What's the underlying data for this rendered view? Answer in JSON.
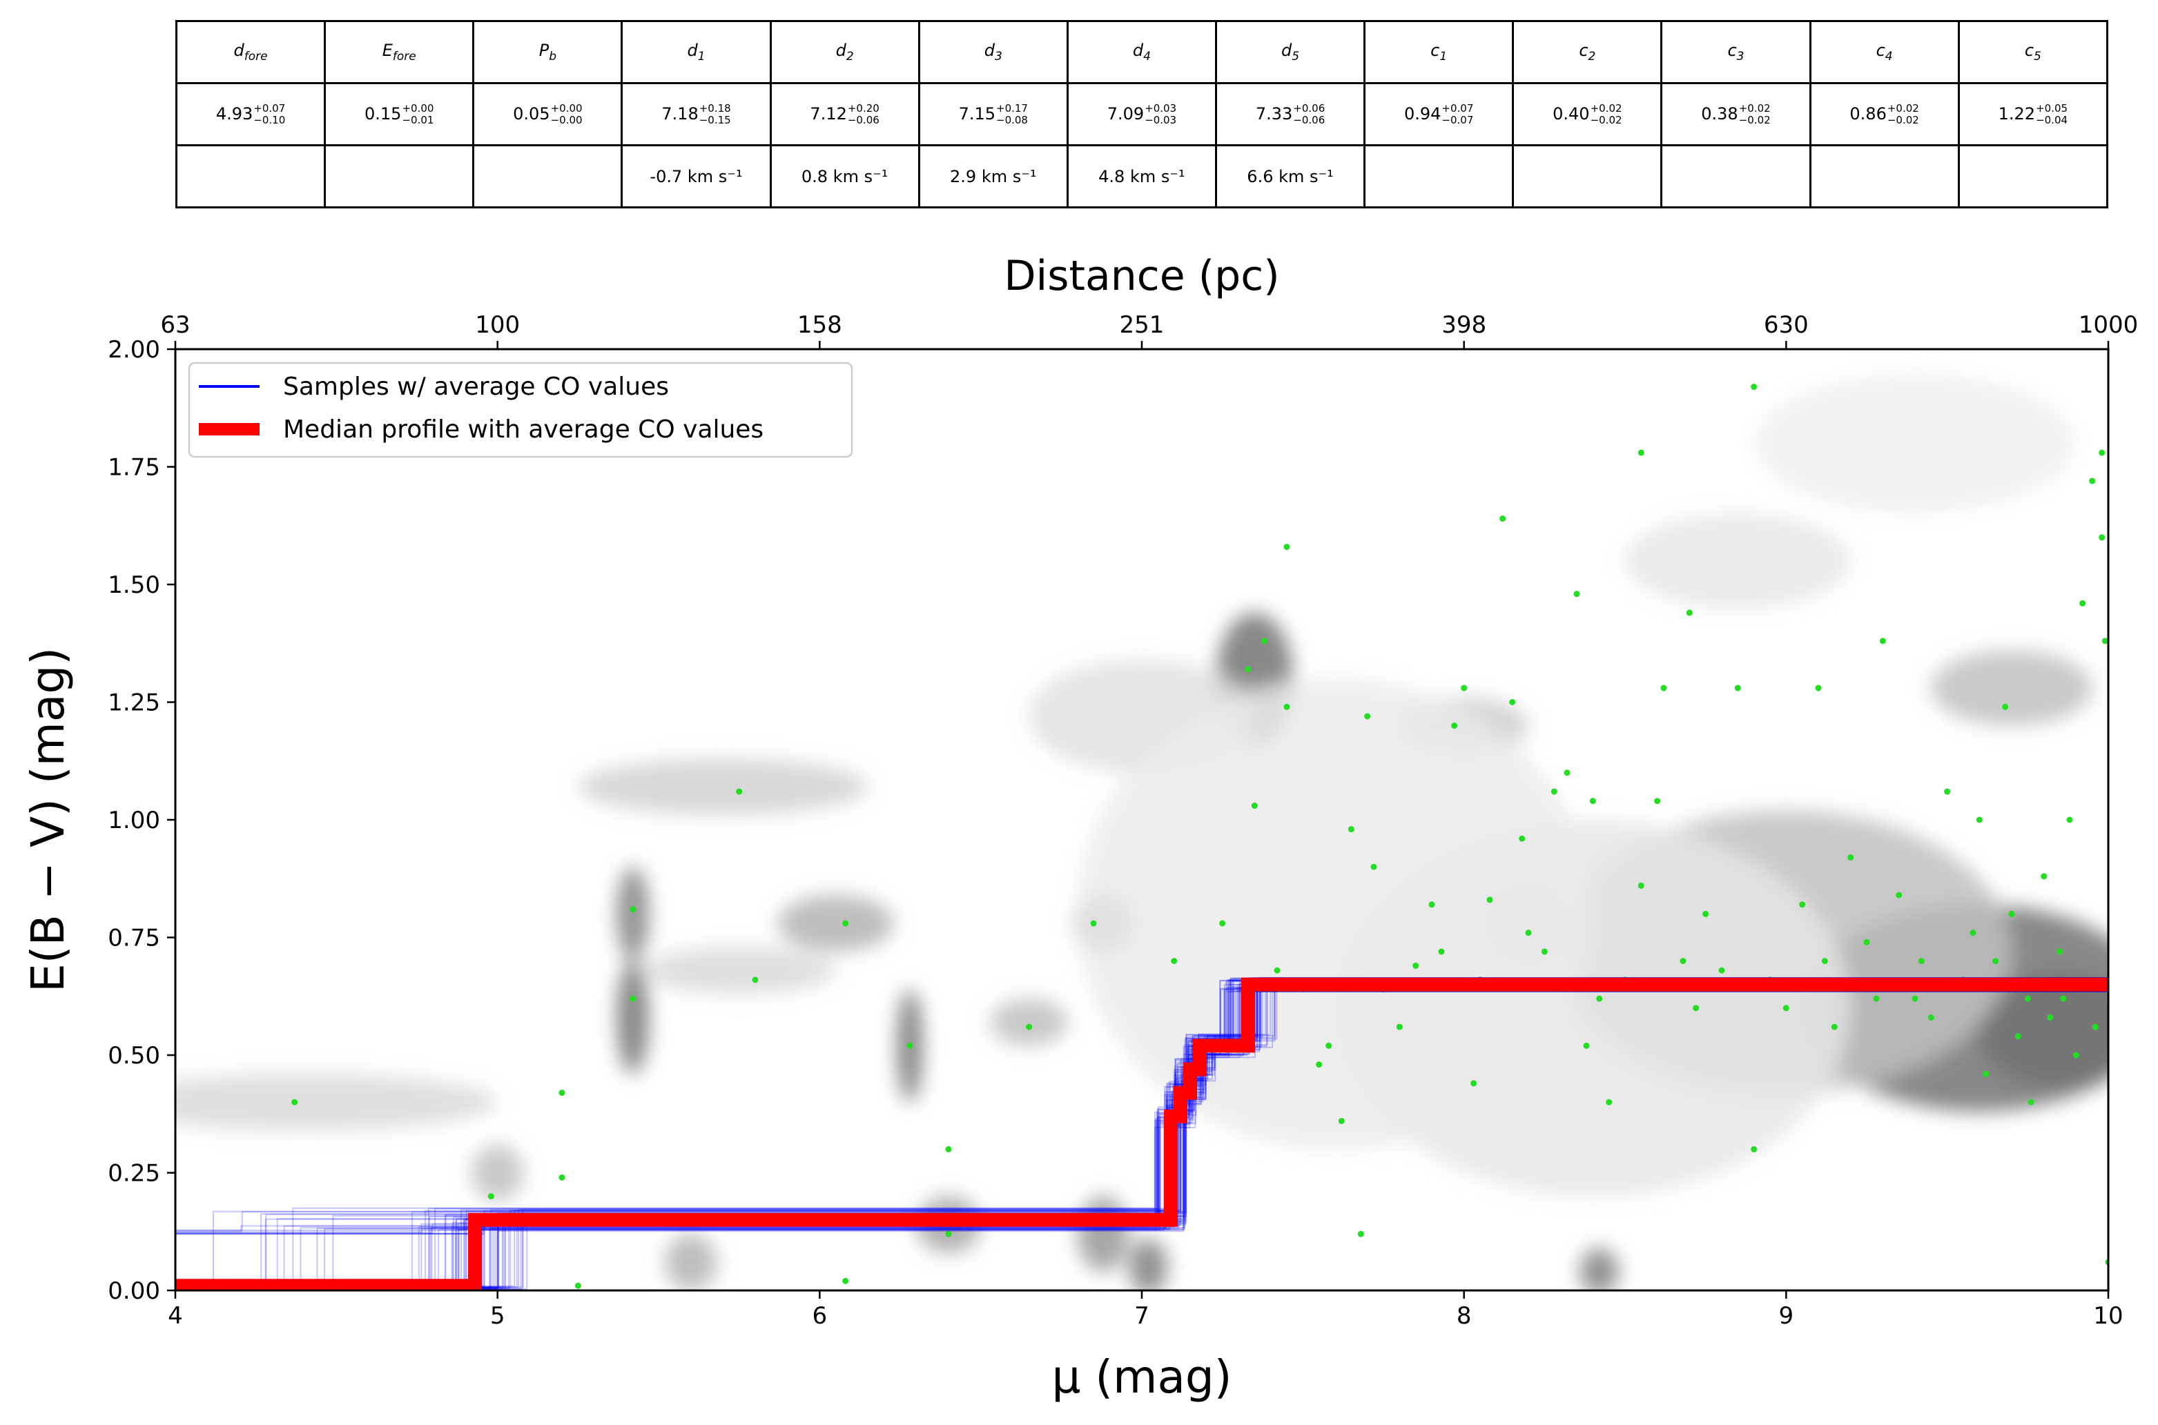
{
  "table": {
    "headers": [
      "dfore",
      "Efore",
      "Pb",
      "d1",
      "d2",
      "d3",
      "d4",
      "d5",
      "c1",
      "c2",
      "c3",
      "c4",
      "c5"
    ],
    "header_subscripts": [
      {
        "base": "d",
        "sub": "fore"
      },
      {
        "base": "E",
        "sub": "fore"
      },
      {
        "base": "P",
        "sub": "b"
      },
      {
        "base": "d",
        "sub": "1"
      },
      {
        "base": "d",
        "sub": "2"
      },
      {
        "base": "d",
        "sub": "3"
      },
      {
        "base": "d",
        "sub": "4"
      },
      {
        "base": "d",
        "sub": "5"
      },
      {
        "base": "c",
        "sub": "1"
      },
      {
        "base": "c",
        "sub": "2"
      },
      {
        "base": "c",
        "sub": "3"
      },
      {
        "base": "c",
        "sub": "4"
      },
      {
        "base": "c",
        "sub": "5"
      }
    ],
    "values": [
      {
        "v": "4.93",
        "plus": "+0.07",
        "minus": "−0.10"
      },
      {
        "v": "0.15",
        "plus": "+0.00",
        "minus": "−0.01"
      },
      {
        "v": "0.05",
        "plus": "+0.00",
        "minus": "−0.00"
      },
      {
        "v": "7.18",
        "plus": "+0.18",
        "minus": "−0.15"
      },
      {
        "v": "7.12",
        "plus": "+0.20",
        "minus": "−0.06"
      },
      {
        "v": "7.15",
        "plus": "+0.17",
        "minus": "−0.08"
      },
      {
        "v": "7.09",
        "plus": "+0.03",
        "minus": "−0.03"
      },
      {
        "v": "7.33",
        "plus": "+0.06",
        "minus": "−0.06"
      },
      {
        "v": "0.94",
        "plus": "+0.07",
        "minus": "−0.07"
      },
      {
        "v": "0.40",
        "plus": "+0.02",
        "minus": "−0.02"
      },
      {
        "v": "0.38",
        "plus": "+0.02",
        "minus": "−0.02"
      },
      {
        "v": "0.86",
        "plus": "+0.02",
        "minus": "−0.02"
      },
      {
        "v": "1.22",
        "plus": "+0.05",
        "minus": "−0.04"
      }
    ],
    "velocities": [
      "",
      "",
      "",
      "-0.7 km s⁻¹",
      "0.8 km s⁻¹",
      "2.9 km s⁻¹",
      "4.8 km s⁻¹",
      "6.6 km s⁻¹",
      "",
      "",
      "",
      "",
      ""
    ]
  },
  "chart_data": {
    "type": "line",
    "xlabel": "μ (mag)",
    "ylabel": "E(B − V) (mag)",
    "top_xlabel": "Distance (pc)",
    "xlim": [
      4,
      10
    ],
    "ylim": [
      0,
      2
    ],
    "xticks": [
      "4",
      "5",
      "6",
      "7",
      "8",
      "9",
      "10"
    ],
    "yticks": [
      "0.00",
      "0.25",
      "0.50",
      "0.75",
      "1.00",
      "1.25",
      "1.50",
      "1.75",
      "2.00"
    ],
    "top_ticks": [
      {
        "mu": 4,
        "label": "63"
      },
      {
        "mu": 5,
        "label": "100"
      },
      {
        "mu": 6,
        "label": "158"
      },
      {
        "mu": 7,
        "label": "251"
      },
      {
        "mu": 8,
        "label": "398"
      },
      {
        "mu": 9,
        "label": "630"
      },
      {
        "mu": 10,
        "label": "1000"
      }
    ],
    "legend_position": "top-left",
    "grid": false,
    "series": [
      {
        "name": "Samples  w/ average CO values",
        "color": "#0000ff",
        "kind": "many thin translucent step profiles",
        "sample_steps": [
          {
            "mu": 4.93,
            "ebv": 0.15
          },
          {
            "mu": 7.09,
            "ebv": 0.37
          },
          {
            "mu": 7.12,
            "ebv": 0.42
          },
          {
            "mu": 7.15,
            "ebv": 0.47
          },
          {
            "mu": 7.18,
            "ebv": 0.52
          },
          {
            "mu": 7.33,
            "ebv": 0.65
          }
        ]
      },
      {
        "name": "Median profile with average CO values",
        "color": "#ff0000",
        "points": [
          {
            "x": 4.0,
            "y": 0.01
          },
          {
            "x": 4.93,
            "y": 0.01
          },
          {
            "x": 4.93,
            "y": 0.15
          },
          {
            "x": 7.09,
            "y": 0.15
          },
          {
            "x": 7.09,
            "y": 0.37
          },
          {
            "x": 7.12,
            "y": 0.37
          },
          {
            "x": 7.12,
            "y": 0.42
          },
          {
            "x": 7.15,
            "y": 0.42
          },
          {
            "x": 7.15,
            "y": 0.47
          },
          {
            "x": 7.18,
            "y": 0.47
          },
          {
            "x": 7.18,
            "y": 0.52
          },
          {
            "x": 7.33,
            "y": 0.52
          },
          {
            "x": 7.33,
            "y": 0.65
          },
          {
            "x": 10.0,
            "y": 0.65
          }
        ]
      }
    ],
    "stars": {
      "color": "#22dd22",
      "points": [
        [
          4.37,
          0.4
        ],
        [
          4.92,
          0.08
        ],
        [
          4.98,
          0.2
        ],
        [
          5.2,
          0.42
        ],
        [
          5.2,
          0.24
        ],
        [
          5.25,
          0.01
        ],
        [
          5.42,
          0.62
        ],
        [
          5.42,
          0.81
        ],
        [
          5.75,
          1.06
        ],
        [
          5.8,
          0.66
        ],
        [
          6.08,
          0.78
        ],
        [
          6.08,
          0.02
        ],
        [
          6.28,
          0.52
        ],
        [
          6.4,
          0.3
        ],
        [
          6.4,
          0.12
        ],
        [
          6.65,
          0.56
        ],
        [
          6.85,
          0.78
        ],
        [
          6.88,
          0.15
        ],
        [
          7.1,
          0.7
        ],
        [
          7.25,
          0.78
        ],
        [
          7.33,
          1.32
        ],
        [
          7.35,
          1.03
        ],
        [
          7.38,
          1.38
        ],
        [
          7.42,
          0.68
        ],
        [
          7.45,
          1.58
        ],
        [
          7.45,
          1.24
        ],
        [
          7.5,
          0.64
        ],
        [
          7.55,
          0.48
        ],
        [
          7.58,
          0.52
        ],
        [
          7.62,
          0.36
        ],
        [
          7.65,
          0.98
        ],
        [
          7.68,
          0.12
        ],
        [
          7.7,
          1.22
        ],
        [
          7.72,
          0.9
        ],
        [
          7.75,
          0.64
        ],
        [
          7.8,
          0.56
        ],
        [
          7.85,
          0.69
        ],
        [
          7.9,
          0.82
        ],
        [
          7.93,
          0.72
        ],
        [
          7.97,
          1.2
        ],
        [
          8.0,
          1.28
        ],
        [
          8.03,
          0.44
        ],
        [
          8.05,
          0.66
        ],
        [
          8.08,
          0.83
        ],
        [
          8.12,
          1.64
        ],
        [
          8.15,
          1.25
        ],
        [
          8.18,
          0.96
        ],
        [
          8.2,
          0.76
        ],
        [
          8.25,
          0.72
        ],
        [
          8.28,
          1.06
        ],
        [
          8.32,
          1.1
        ],
        [
          8.35,
          1.48
        ],
        [
          8.38,
          0.52
        ],
        [
          8.4,
          1.04
        ],
        [
          8.42,
          0.62
        ],
        [
          8.45,
          0.4
        ],
        [
          8.5,
          0.66
        ],
        [
          8.55,
          1.78
        ],
        [
          8.55,
          0.86
        ],
        [
          8.6,
          1.04
        ],
        [
          8.62,
          1.28
        ],
        [
          8.68,
          0.7
        ],
        [
          8.7,
          1.44
        ],
        [
          8.72,
          0.6
        ],
        [
          8.75,
          0.8
        ],
        [
          8.8,
          0.68
        ],
        [
          8.85,
          1.28
        ],
        [
          8.9,
          0.3
        ],
        [
          8.9,
          1.92
        ],
        [
          8.95,
          0.66
        ],
        [
          9.0,
          0.6
        ],
        [
          9.05,
          0.82
        ],
        [
          9.1,
          1.28
        ],
        [
          9.12,
          0.7
        ],
        [
          9.15,
          0.56
        ],
        [
          9.2,
          0.92
        ],
        [
          9.25,
          0.74
        ],
        [
          9.28,
          0.62
        ],
        [
          9.3,
          1.38
        ],
        [
          9.35,
          0.84
        ],
        [
          9.4,
          0.62
        ],
        [
          9.42,
          0.7
        ],
        [
          9.45,
          0.58
        ],
        [
          9.5,
          1.06
        ],
        [
          9.55,
          0.66
        ],
        [
          9.6,
          1.0
        ],
        [
          9.62,
          0.46
        ],
        [
          9.65,
          0.7
        ],
        [
          9.68,
          1.24
        ],
        [
          9.7,
          0.8
        ],
        [
          9.72,
          0.54
        ],
        [
          9.75,
          0.62
        ],
        [
          9.78,
          0.66
        ],
        [
          9.8,
          0.88
        ],
        [
          9.82,
          0.58
        ],
        [
          9.85,
          0.72
        ],
        [
          9.88,
          1.0
        ],
        [
          9.9,
          0.5
        ],
        [
          9.92,
          1.46
        ],
        [
          9.95,
          1.72
        ],
        [
          9.96,
          0.56
        ],
        [
          9.98,
          1.78
        ],
        [
          9.98,
          1.6
        ],
        [
          9.99,
          1.38
        ],
        [
          10.0,
          0.06
        ],
        [
          9.86,
          0.62
        ],
        [
          9.76,
          0.4
        ],
        [
          9.58,
          0.76
        ]
      ]
    },
    "background": {
      "kind": "grayscale density of stellar extinction probability",
      "clumps": [
        {
          "x": 4.4,
          "y": 0.4,
          "w": 0.6,
          "h": 0.06,
          "i": 0.15
        },
        {
          "x": 5.42,
          "y": 0.58,
          "w": 0.05,
          "h": 0.12,
          "i": 0.55
        },
        {
          "x": 5.42,
          "y": 0.8,
          "w": 0.05,
          "h": 0.1,
          "i": 0.5
        },
        {
          "x": 5.7,
          "y": 1.07,
          "w": 0.45,
          "h": 0.06,
          "i": 0.18
        },
        {
          "x": 6.05,
          "y": 0.78,
          "w": 0.18,
          "h": 0.06,
          "i": 0.3
        },
        {
          "x": 5.75,
          "y": 0.68,
          "w": 0.3,
          "h": 0.05,
          "i": 0.15
        },
        {
          "x": 6.28,
          "y": 0.52,
          "w": 0.04,
          "h": 0.12,
          "i": 0.55
        },
        {
          "x": 6.4,
          "y": 0.14,
          "w": 0.1,
          "h": 0.06,
          "i": 0.35
        },
        {
          "x": 5.6,
          "y": 0.06,
          "w": 0.08,
          "h": 0.06,
          "i": 0.3
        },
        {
          "x": 6.65,
          "y": 0.57,
          "w": 0.12,
          "h": 0.05,
          "i": 0.25
        },
        {
          "x": 6.88,
          "y": 0.78,
          "w": 0.09,
          "h": 0.06,
          "i": 0.4
        },
        {
          "x": 6.88,
          "y": 0.12,
          "w": 0.08,
          "h": 0.08,
          "i": 0.4
        },
        {
          "x": 7.02,
          "y": 0.05,
          "w": 0.06,
          "h": 0.06,
          "i": 0.5
        },
        {
          "x": 7.35,
          "y": 1.3,
          "w": 0.12,
          "h": 0.14,
          "i": 0.55
        },
        {
          "x": 7.0,
          "y": 1.22,
          "w": 0.35,
          "h": 0.12,
          "i": 0.12
        },
        {
          "x": 8.0,
          "y": 1.2,
          "w": 0.2,
          "h": 0.06,
          "i": 0.2
        },
        {
          "x": 8.2,
          "y": 0.78,
          "w": 0.12,
          "h": 0.08,
          "i": 0.4
        },
        {
          "x": 8.42,
          "y": 0.04,
          "w": 0.06,
          "h": 0.05,
          "i": 0.5
        },
        {
          "x": 8.85,
          "y": 1.55,
          "w": 0.35,
          "h": 0.1,
          "i": 0.1
        },
        {
          "x": 9.7,
          "y": 1.28,
          "w": 0.25,
          "h": 0.08,
          "i": 0.25
        },
        {
          "x": 9.4,
          "y": 1.8,
          "w": 0.5,
          "h": 0.15,
          "i": 0.06
        },
        {
          "x": 9.6,
          "y": 0.6,
          "w": 0.55,
          "h": 0.22,
          "i": 0.55
        },
        {
          "x": 9.85,
          "y": 0.55,
          "w": 0.25,
          "h": 0.12,
          "i": 0.55
        },
        {
          "x": 9.0,
          "y": 0.72,
          "w": 0.7,
          "h": 0.3,
          "i": 0.25
        },
        {
          "x": 8.4,
          "y": 0.6,
          "w": 0.8,
          "h": 0.4,
          "i": 0.1
        },
        {
          "x": 7.6,
          "y": 0.8,
          "w": 0.8,
          "h": 0.5,
          "i": 0.08
        },
        {
          "x": 5.0,
          "y": 0.25,
          "w": 0.08,
          "h": 0.06,
          "i": 0.25
        }
      ]
    }
  }
}
